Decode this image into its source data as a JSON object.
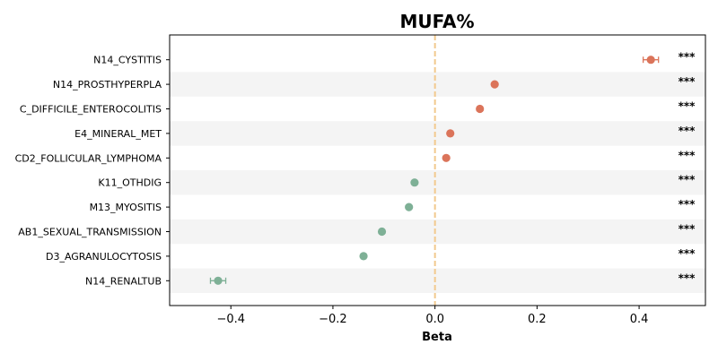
{
  "chart_data": {
    "type": "scatter",
    "title": "MUFA%",
    "xlabel": "Beta",
    "ylabel": "",
    "xlim": [
      -0.52,
      0.53
    ],
    "xticks": [
      -0.4,
      -0.2,
      0.0,
      0.2,
      0.4
    ],
    "xtick_labels": [
      "−0.4",
      "−0.2",
      "0.0",
      "0.2",
      "0.4"
    ],
    "reference_line": 0,
    "row_shading": "alternating",
    "colors": {
      "positive": "#DB745A",
      "negative": "#7EB096",
      "reference": "#F2C98E",
      "band": "#F4F4F4"
    },
    "points": [
      {
        "label": "N14_CYSTITIS",
        "beta": 0.423,
        "ci": [
          0.408,
          0.438
        ],
        "sig": "***"
      },
      {
        "label": "N14_PROSTHYPERPLA",
        "beta": 0.117,
        "ci": [
          0.114,
          0.12
        ],
        "sig": "***"
      },
      {
        "label": "C_DIFFICILE_ENTEROCOLITIS",
        "beta": 0.088,
        "ci": [
          0.085,
          0.091
        ],
        "sig": "***"
      },
      {
        "label": "E4_MINERAL_MET",
        "beta": 0.03,
        "ci": [
          0.027,
          0.033
        ],
        "sig": "***"
      },
      {
        "label": "CD2_FOLLICULAR_LYMPHOMA",
        "beta": 0.022,
        "ci": [
          0.019,
          0.025
        ],
        "sig": "***"
      },
      {
        "label": "K11_OTHDIG",
        "beta": -0.04,
        "ci": [
          -0.043,
          -0.037
        ],
        "sig": "***"
      },
      {
        "label": "M13_MYOSITIS",
        "beta": -0.051,
        "ci": [
          -0.054,
          -0.048
        ],
        "sig": "***"
      },
      {
        "label": "AB1_SEXUAL_TRANSMISSION",
        "beta": -0.104,
        "ci": [
          -0.107,
          -0.101
        ],
        "sig": "***"
      },
      {
        "label": "D3_AGRANULOCYTOSIS",
        "beta": -0.14,
        "ci": [
          -0.143,
          -0.137
        ],
        "sig": "***"
      },
      {
        "label": "N14_RENALTUB",
        "beta": -0.425,
        "ci": [
          -0.44,
          -0.41
        ],
        "sig": "***"
      }
    ]
  }
}
